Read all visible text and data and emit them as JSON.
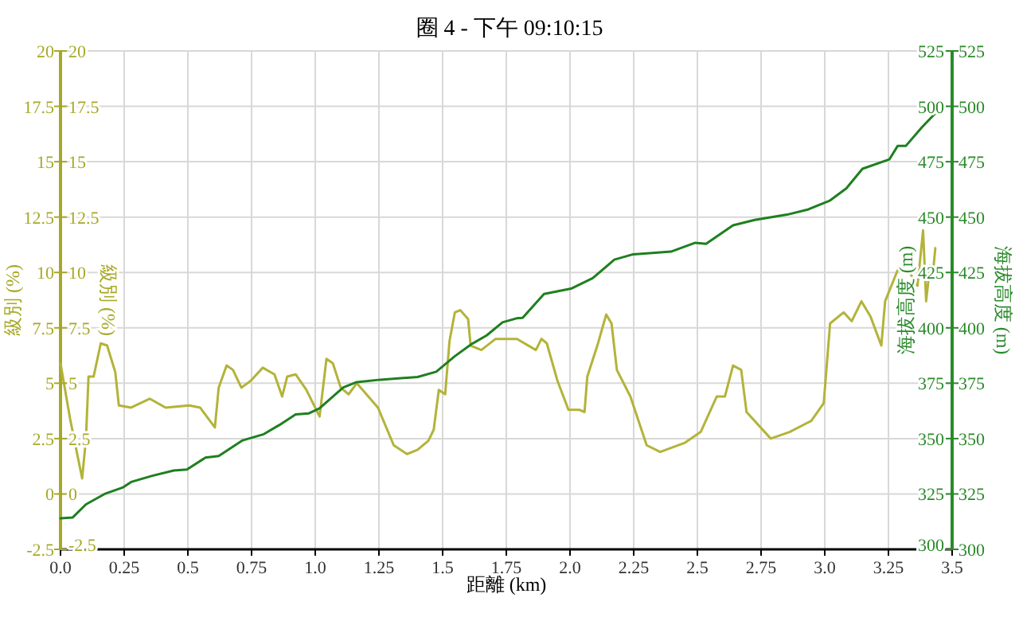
{
  "chart_data": {
    "type": "line",
    "title": "圈 4 - 下午 09:10:15",
    "xlabel": "距離 (km)",
    "ylabel": "級別 (%)",
    "y2label": "海拔高度 (m)",
    "xlim": [
      0,
      3.5
    ],
    "xticks": [
      {
        "value": 0,
        "label": "0.0"
      },
      0.25,
      {
        "value": 0.5,
        "label": "0.5"
      },
      0.75,
      {
        "value": 1,
        "label": "1.0"
      },
      1.25,
      1.5,
      1.75,
      {
        "value": 2,
        "label": "2.0"
      },
      2.25,
      2.5,
      2.75,
      {
        "value": 3,
        "label": "3.0"
      },
      3.25,
      3.5
    ],
    "ylim": [
      -2.5,
      20
    ],
    "yticks": [
      -2.5,
      0,
      2.5,
      5,
      7.5,
      10,
      12.5,
      15,
      17.5,
      20
    ],
    "y2lim": [
      300,
      525
    ],
    "y2ticks": [
      300,
      325,
      350,
      375,
      400,
      425,
      450,
      475,
      500,
      525
    ],
    "y3label": "級別 (%)",
    "y3lim": [
      -2.5,
      20
    ],
    "y3ticks": [
      -2.5,
      0,
      2.5,
      5,
      7.5,
      10,
      12.5,
      15,
      17.5,
      20
    ],
    "annotations": [
      "300",
      "325",
      "350",
      "375",
      "400",
      "425",
      "450",
      "475",
      "500",
      "525"
    ],
    "grid": true,
    "marker": "none",
    "line_style": "solid",
    "series": [
      {
        "color": "#b3b33a",
        "x": [
          0,
          0.0375,
          0.085,
          0.1,
          0.11,
          0.13,
          0.158,
          0.183,
          0.215,
          0.229,
          0.277,
          0.35,
          0.4125,
          0.506,
          0.548,
          0.606,
          0.621,
          0.652,
          0.677,
          0.71,
          0.746,
          0.794,
          0.84,
          0.87,
          0.89,
          0.923,
          0.965,
          1.017,
          1.044,
          1.069,
          1.1,
          1.131,
          1.163,
          1.246,
          1.308,
          1.36,
          1.402,
          1.444,
          1.465,
          1.485,
          1.51,
          1.527,
          1.548,
          1.569,
          1.6,
          1.61,
          1.652,
          1.708,
          1.792,
          1.866,
          1.888,
          1.909,
          1.951,
          1.994,
          2.036,
          2.057,
          2.068,
          2.11,
          2.142,
          2.163,
          2.184,
          2.237,
          2.301,
          2.354,
          2.449,
          2.513,
          2.576,
          2.608,
          2.64,
          2.672,
          2.693,
          2.788,
          2.862,
          2.947,
          2.996,
          3.021,
          3.074,
          3.106,
          3.144,
          3.18,
          3.222,
          3.237,
          3.286,
          3.328,
          3.364,
          3.386,
          3.398,
          3.413,
          3.424,
          3.434
        ],
        "values": [
          5.9,
          3.4,
          0.7,
          2.5,
          5.3,
          5.3,
          6.8,
          6.7,
          5.5,
          4.0,
          3.9,
          4.3,
          3.9,
          4.0,
          3.9,
          3.0,
          4.8,
          5.8,
          5.6,
          4.8,
          5.1,
          5.7,
          5.4,
          4.4,
          5.3,
          5.4,
          4.7,
          3.5,
          6.1,
          5.9,
          4.8,
          4.5,
          5.0,
          3.9,
          2.2,
          1.8,
          2.0,
          2.4,
          2.9,
          4.7,
          4.5,
          6.9,
          8.2,
          8.3,
          7.9,
          6.7,
          6.5,
          7.0,
          7.0,
          6.5,
          7.0,
          6.8,
          5.1,
          3.8,
          3.8,
          3.7,
          5.3,
          6.8,
          8.1,
          7.7,
          5.6,
          4.4,
          2.2,
          1.9,
          2.3,
          2.8,
          4.4,
          4.4,
          5.8,
          5.6,
          3.7,
          2.5,
          2.8,
          3.3,
          4.1,
          7.7,
          8.2,
          7.8,
          8.7,
          8.0,
          6.7,
          8.7,
          10.1,
          10.1,
          9.4,
          11.9,
          8.7,
          10.3,
          9.9,
          11.1
        ]
      },
      {
        "color": "#1f7f1f",
        "axis": "y2",
        "x": [
          0,
          0.048,
          0.1,
          0.173,
          0.246,
          0.277,
          0.36,
          0.444,
          0.496,
          0.569,
          0.621,
          0.715,
          0.798,
          0.86,
          0.923,
          0.975,
          1.017,
          1.11,
          1.163,
          1.256,
          1.402,
          1.475,
          1.548,
          1.61,
          1.673,
          1.735,
          1.79,
          1.814,
          1.898,
          2.004,
          2.089,
          2.174,
          2.248,
          2.396,
          2.492,
          2.534,
          2.64,
          2.725,
          2.852,
          2.936,
          3.021,
          3.085,
          3.148,
          3.254,
          3.286,
          3.318,
          3.381,
          3.434
        ],
        "values": [
          314,
          314.4,
          320.3,
          325,
          328,
          330.4,
          333.2,
          335.6,
          336,
          341.4,
          342.1,
          349.2,
          352,
          356.2,
          360.9,
          361.4,
          363.7,
          373.1,
          375.5,
          376.6,
          377.8,
          380.2,
          387.2,
          392.4,
          396.6,
          402.5,
          404.3,
          404.5,
          415.3,
          417.7,
          422.4,
          430.8,
          433.2,
          434.4,
          438.4,
          437.9,
          446.3,
          448.7,
          451.1,
          453.5,
          457.5,
          463,
          471.8,
          476.1,
          482.1,
          482.1,
          490.5,
          496.9
        ]
      }
    ]
  }
}
